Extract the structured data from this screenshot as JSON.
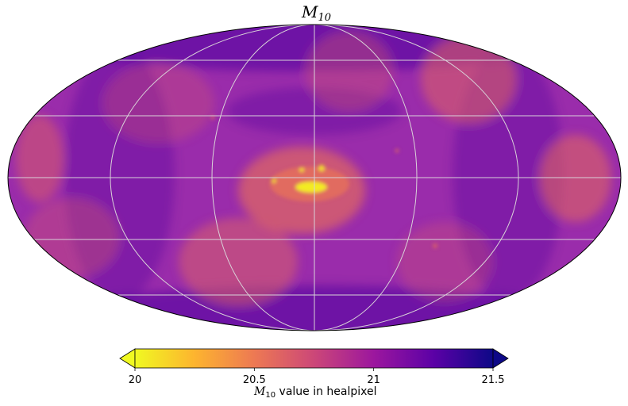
{
  "chart_data": {
    "type": "heatmap",
    "projection": "mollweide",
    "title_main": "M",
    "title_sub": "10",
    "colormap": "plasma_r",
    "colormap_stops": [
      "#f0f921",
      "#fdb42f",
      "#ed7953",
      "#cc4778",
      "#9c179e",
      "#5c01a6",
      "#0d0887"
    ],
    "background_color": "#9a2cab",
    "graticule": true,
    "colorbar": {
      "vmin": 20,
      "vmax": 21.5,
      "extend": "both",
      "ticks": [
        20,
        20.5,
        21,
        21.5
      ],
      "tick_labels": [
        "20",
        "20.5",
        "21",
        "21.5"
      ],
      "label_symbol": "M",
      "label_sub": "10",
      "label_text": " value in healpixel"
    },
    "features": [
      {
        "name": "galactic-center-bulge",
        "value": 20.05
      },
      {
        "name": "bright-ellipse-center",
        "value": 20.55
      },
      {
        "name": "patch-northeast",
        "value": 20.6
      },
      {
        "name": "patch-east",
        "value": 20.6
      },
      {
        "name": "patch-west",
        "value": 20.65
      },
      {
        "name": "patch-southwest",
        "value": 20.6
      },
      {
        "name": "patch-south",
        "value": 20.65
      },
      {
        "name": "edge-bands",
        "value": 21.3
      }
    ]
  }
}
